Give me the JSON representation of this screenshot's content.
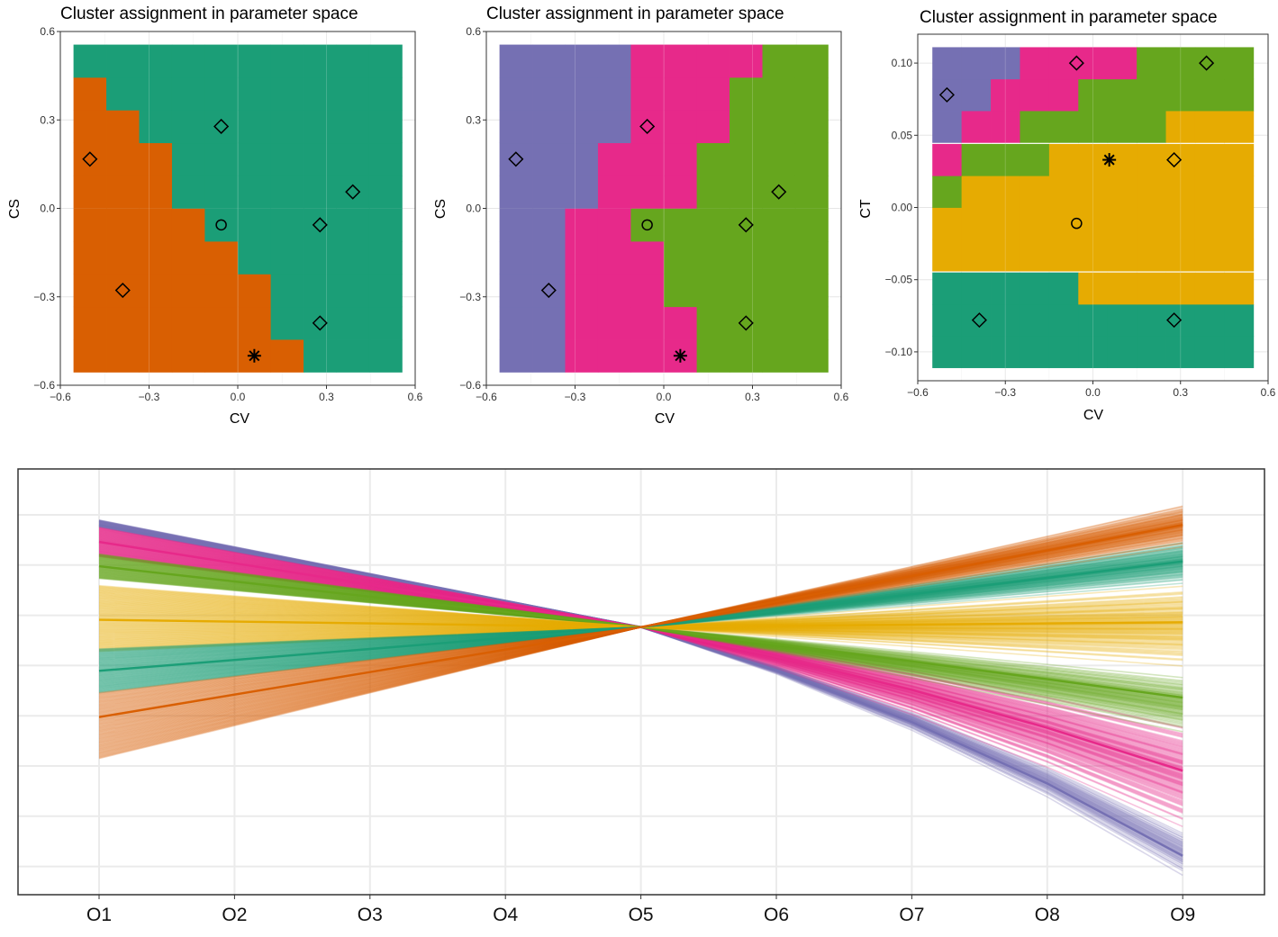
{
  "colors": {
    "orange": "#D95F02",
    "teal": "#1B9E77",
    "purple": "#7570B3",
    "pink": "#E7298A",
    "green": "#66A61E",
    "yellow": "#E6AB02"
  },
  "chart_data": [
    {
      "type": "heatmap",
      "title": "Cluster assignment in parameter space",
      "xlabel": "CV",
      "ylabel": "CS",
      "xlim": [
        -0.6,
        0.6
      ],
      "ylim": [
        -0.6,
        0.6
      ],
      "x_ticks": [
        "−0.6",
        "−0.3",
        "0.0",
        "0.3",
        "0.6"
      ],
      "y_ticks": [
        "−0.6",
        "−0.3",
        "0.0",
        "0.3",
        "0.6"
      ],
      "grid": true,
      "x_levels": [
        -0.5,
        -0.389,
        -0.278,
        -0.167,
        -0.056,
        0.056,
        0.167,
        0.278,
        0.389,
        0.5
      ],
      "y_levels": [
        -0.5,
        -0.389,
        -0.278,
        -0.167,
        -0.056,
        0.056,
        0.167,
        0.278,
        0.389,
        0.5
      ],
      "cluster_colors": [
        "#D95F02",
        "#1B9E77"
      ],
      "grid_clusters": [
        [
          0,
          0,
          0,
          0,
          0,
          0,
          0,
          1,
          1,
          1
        ],
        [
          0,
          0,
          0,
          0,
          0,
          0,
          1,
          1,
          1,
          1
        ],
        [
          0,
          0,
          0,
          0,
          0,
          0,
          1,
          1,
          1,
          1
        ],
        [
          0,
          0,
          0,
          0,
          0,
          1,
          1,
          1,
          1,
          1
        ],
        [
          0,
          0,
          0,
          0,
          1,
          1,
          1,
          1,
          1,
          1
        ],
        [
          0,
          0,
          0,
          1,
          1,
          1,
          1,
          1,
          1,
          1
        ],
        [
          0,
          0,
          0,
          1,
          1,
          1,
          1,
          1,
          1,
          1
        ],
        [
          0,
          0,
          1,
          1,
          1,
          1,
          1,
          1,
          1,
          1
        ],
        [
          0,
          1,
          1,
          1,
          1,
          1,
          1,
          1,
          1,
          1
        ],
        [
          1,
          1,
          1,
          1,
          1,
          1,
          1,
          1,
          1,
          1
        ]
      ],
      "points": [
        {
          "x": -0.5,
          "y": 0.167,
          "marker": "diamond"
        },
        {
          "x": -0.389,
          "y": -0.278,
          "marker": "diamond"
        },
        {
          "x": -0.056,
          "y": 0.278,
          "marker": "diamond"
        },
        {
          "x": -0.056,
          "y": -0.056,
          "marker": "circle"
        },
        {
          "x": 0.278,
          "y": -0.056,
          "marker": "diamond"
        },
        {
          "x": 0.389,
          "y": 0.056,
          "marker": "diamond"
        },
        {
          "x": 0.278,
          "y": -0.389,
          "marker": "diamond"
        },
        {
          "x": 0.056,
          "y": -0.5,
          "marker": "asterisk"
        }
      ]
    },
    {
      "type": "heatmap",
      "title": "Cluster assignment in parameter space",
      "xlabel": "CV",
      "ylabel": "CS",
      "xlim": [
        -0.6,
        0.6
      ],
      "ylim": [
        -0.6,
        0.6
      ],
      "x_ticks": [
        "−0.6",
        "−0.3",
        "0.0",
        "0.3",
        "0.6"
      ],
      "y_ticks": [
        "−0.6",
        "−0.3",
        "0.0",
        "0.3",
        "0.6"
      ],
      "grid": true,
      "x_levels": [
        -0.5,
        -0.389,
        -0.278,
        -0.167,
        -0.056,
        0.056,
        0.167,
        0.278,
        0.389,
        0.5
      ],
      "y_levels": [
        -0.5,
        -0.389,
        -0.278,
        -0.167,
        -0.056,
        0.056,
        0.167,
        0.278,
        0.389,
        0.5
      ],
      "cluster_colors": [
        "#7570B3",
        "#E7298A",
        "#66A61E"
      ],
      "grid_clusters": [
        [
          0,
          0,
          1,
          1,
          1,
          1,
          2,
          2,
          2,
          2
        ],
        [
          0,
          0,
          1,
          1,
          1,
          1,
          2,
          2,
          2,
          2
        ],
        [
          0,
          0,
          1,
          1,
          1,
          2,
          2,
          2,
          2,
          2
        ],
        [
          0,
          0,
          1,
          1,
          1,
          2,
          2,
          2,
          2,
          2
        ],
        [
          0,
          0,
          1,
          1,
          2,
          2,
          2,
          2,
          2,
          2
        ],
        [
          0,
          0,
          0,
          1,
          1,
          1,
          2,
          2,
          2,
          2
        ],
        [
          0,
          0,
          0,
          1,
          1,
          1,
          2,
          2,
          2,
          2
        ],
        [
          0,
          0,
          0,
          0,
          1,
          1,
          1,
          2,
          2,
          2
        ],
        [
          0,
          0,
          0,
          0,
          1,
          1,
          1,
          2,
          2,
          2
        ],
        [
          0,
          0,
          0,
          0,
          1,
          1,
          1,
          1,
          2,
          2
        ]
      ],
      "points": [
        {
          "x": -0.5,
          "y": 0.167,
          "marker": "diamond"
        },
        {
          "x": -0.389,
          "y": -0.278,
          "marker": "diamond"
        },
        {
          "x": -0.056,
          "y": 0.278,
          "marker": "diamond"
        },
        {
          "x": -0.056,
          "y": -0.056,
          "marker": "circle"
        },
        {
          "x": 0.278,
          "y": -0.056,
          "marker": "diamond"
        },
        {
          "x": 0.389,
          "y": 0.056,
          "marker": "diamond"
        },
        {
          "x": 0.278,
          "y": -0.389,
          "marker": "diamond"
        },
        {
          "x": 0.056,
          "y": -0.5,
          "marker": "asterisk"
        }
      ]
    },
    {
      "type": "heatmap",
      "title": "Cluster assignment in parameter space",
      "xlabel": "CV",
      "ylabel": "CT",
      "xlim": [
        -0.6,
        0.6
      ],
      "ylim": [
        -0.12,
        0.12
      ],
      "x_ticks": [
        "−0.6",
        "−0.3",
        "0.0",
        "0.3",
        "0.6"
      ],
      "y_ticks": [
        "−0.10",
        "−0.05",
        "0.00",
        "0.05",
        "0.10"
      ],
      "grid": true,
      "x_levels": [
        -0.5,
        -0.4,
        -0.3,
        -0.2,
        -0.1,
        0.0,
        0.1,
        0.2,
        0.3,
        0.4,
        0.5
      ],
      "y_levels": [
        -0.1,
        -0.078,
        -0.056,
        -0.033,
        -0.011,
        0.011,
        0.033,
        0.056,
        0.078,
        0.1
      ],
      "cluster_colors": [
        "#1B9E77",
        "#E6AB02",
        "#66A61E",
        "#E7298A",
        "#7570B3"
      ],
      "grid_clusters": [
        [
          0,
          0,
          0,
          0,
          0,
          0,
          0,
          0,
          0,
          0,
          0
        ],
        [
          0,
          0,
          0,
          0,
          0,
          0,
          0,
          0,
          0,
          0,
          0
        ],
        [
          0,
          0,
          0,
          0,
          0,
          1,
          1,
          1,
          1,
          1,
          1
        ],
        [
          1,
          1,
          1,
          1,
          1,
          1,
          1,
          1,
          1,
          1,
          1
        ],
        [
          1,
          1,
          1,
          1,
          1,
          1,
          1,
          1,
          1,
          1,
          1
        ],
        [
          2,
          1,
          1,
          1,
          1,
          1,
          1,
          1,
          1,
          1,
          1
        ],
        [
          3,
          2,
          2,
          2,
          1,
          1,
          1,
          1,
          1,
          1,
          1
        ],
        [
          4,
          3,
          3,
          2,
          2,
          2,
          2,
          2,
          1,
          1,
          1
        ],
        [
          4,
          4,
          3,
          3,
          3,
          2,
          2,
          2,
          2,
          2,
          2
        ],
        [
          4,
          4,
          4,
          3,
          3,
          3,
          3,
          2,
          2,
          2,
          2
        ]
      ],
      "points": [
        {
          "x": -0.5,
          "y": 0.078,
          "marker": "diamond"
        },
        {
          "x": -0.056,
          "y": 0.1,
          "marker": "diamond"
        },
        {
          "x": 0.389,
          "y": 0.1,
          "marker": "diamond"
        },
        {
          "x": 0.278,
          "y": 0.033,
          "marker": "diamond"
        },
        {
          "x": 0.056,
          "y": 0.033,
          "marker": "asterisk"
        },
        {
          "x": -0.056,
          "y": -0.011,
          "marker": "circle"
        },
        {
          "x": -0.389,
          "y": -0.078,
          "marker": "diamond"
        },
        {
          "x": 0.278,
          "y": -0.078,
          "marker": "diamond"
        }
      ]
    },
    {
      "type": "line",
      "categories": [
        "O1",
        "O2",
        "O3",
        "O4",
        "O5",
        "O6",
        "O7",
        "O8",
        "O9"
      ],
      "pivot_index": 4,
      "ylim": [
        -1.1,
        0.65
      ],
      "grid": true,
      "series": [
        {
          "color": "#7570B3",
          "start_range": [
            0.41,
            0.44
          ],
          "end_range": [
            -1.02,
            -0.83
          ],
          "start": 0.42,
          "end": -0.94,
          "bend": 0.3,
          "n_lines": 50
        },
        {
          "color": "#E7298A",
          "start_range": [
            0.29,
            0.41
          ],
          "end_range": [
            -0.82,
            -0.38
          ],
          "start": 0.35,
          "end": -0.59,
          "bend": 0.22,
          "n_lines": 110
        },
        {
          "color": "#66A61E",
          "start_range": [
            0.2,
            0.3
          ],
          "end_range": [
            -0.43,
            -0.2
          ],
          "start": 0.25,
          "end": -0.29,
          "bend": 0.05,
          "n_lines": 80
        },
        {
          "color": "#E6AB02",
          "start_range": [
            -0.1,
            0.17
          ],
          "end_range": [
            -0.16,
            0.18
          ],
          "start": 0.03,
          "end": 0.02,
          "bend": 0,
          "n_lines": 100
        },
        {
          "color": "#1B9E77",
          "start_range": [
            -0.27,
            -0.09
          ],
          "end_range": [
            0.18,
            0.36
          ],
          "start": -0.18,
          "end": 0.27,
          "bend": 0,
          "n_lines": 90
        },
        {
          "color": "#D95F02",
          "start_range": [
            -0.54,
            -0.27
          ],
          "end_range": [
            0.33,
            0.51
          ],
          "start": -0.37,
          "end": 0.42,
          "bend": 0,
          "n_lines": 90
        }
      ]
    }
  ]
}
